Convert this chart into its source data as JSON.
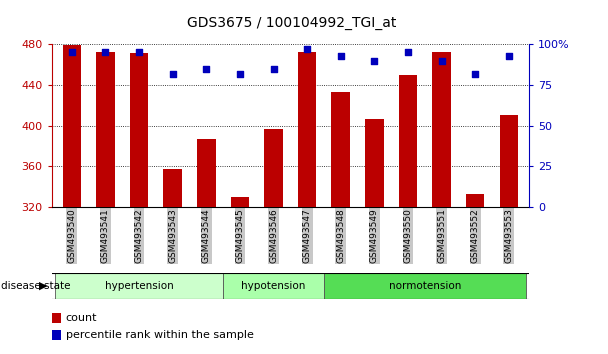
{
  "title": "GDS3675 / 100104992_TGI_at",
  "samples": [
    "GSM493540",
    "GSM493541",
    "GSM493542",
    "GSM493543",
    "GSM493544",
    "GSM493545",
    "GSM493546",
    "GSM493547",
    "GSM493548",
    "GSM493549",
    "GSM493550",
    "GSM493551",
    "GSM493552",
    "GSM493553"
  ],
  "counts": [
    479,
    472,
    471,
    357,
    387,
    330,
    397,
    472,
    433,
    407,
    450,
    472,
    333,
    410
  ],
  "percentiles": [
    95,
    95,
    95,
    82,
    85,
    82,
    85,
    97,
    93,
    90,
    95,
    90,
    82,
    93
  ],
  "groups": [
    {
      "label": "hypertension",
      "start": 0,
      "end": 5,
      "color": "#ccffcc"
    },
    {
      "label": "hypotension",
      "start": 5,
      "end": 8,
      "color": "#aaffaa"
    },
    {
      "label": "normotension",
      "start": 8,
      "end": 14,
      "color": "#55dd55"
    }
  ],
  "ylim": [
    320,
    480
  ],
  "yticks": [
    320,
    360,
    400,
    440,
    480
  ],
  "right_yticks": [
    0,
    25,
    50,
    75,
    100
  ],
  "bar_color": "#bb0000",
  "dot_color": "#0000bb",
  "bar_width": 0.55,
  "bg_color": "#c8c8c8",
  "legend_count_label": "count",
  "legend_pct_label": "percentile rank within the sample",
  "disease_state_label": "disease state"
}
